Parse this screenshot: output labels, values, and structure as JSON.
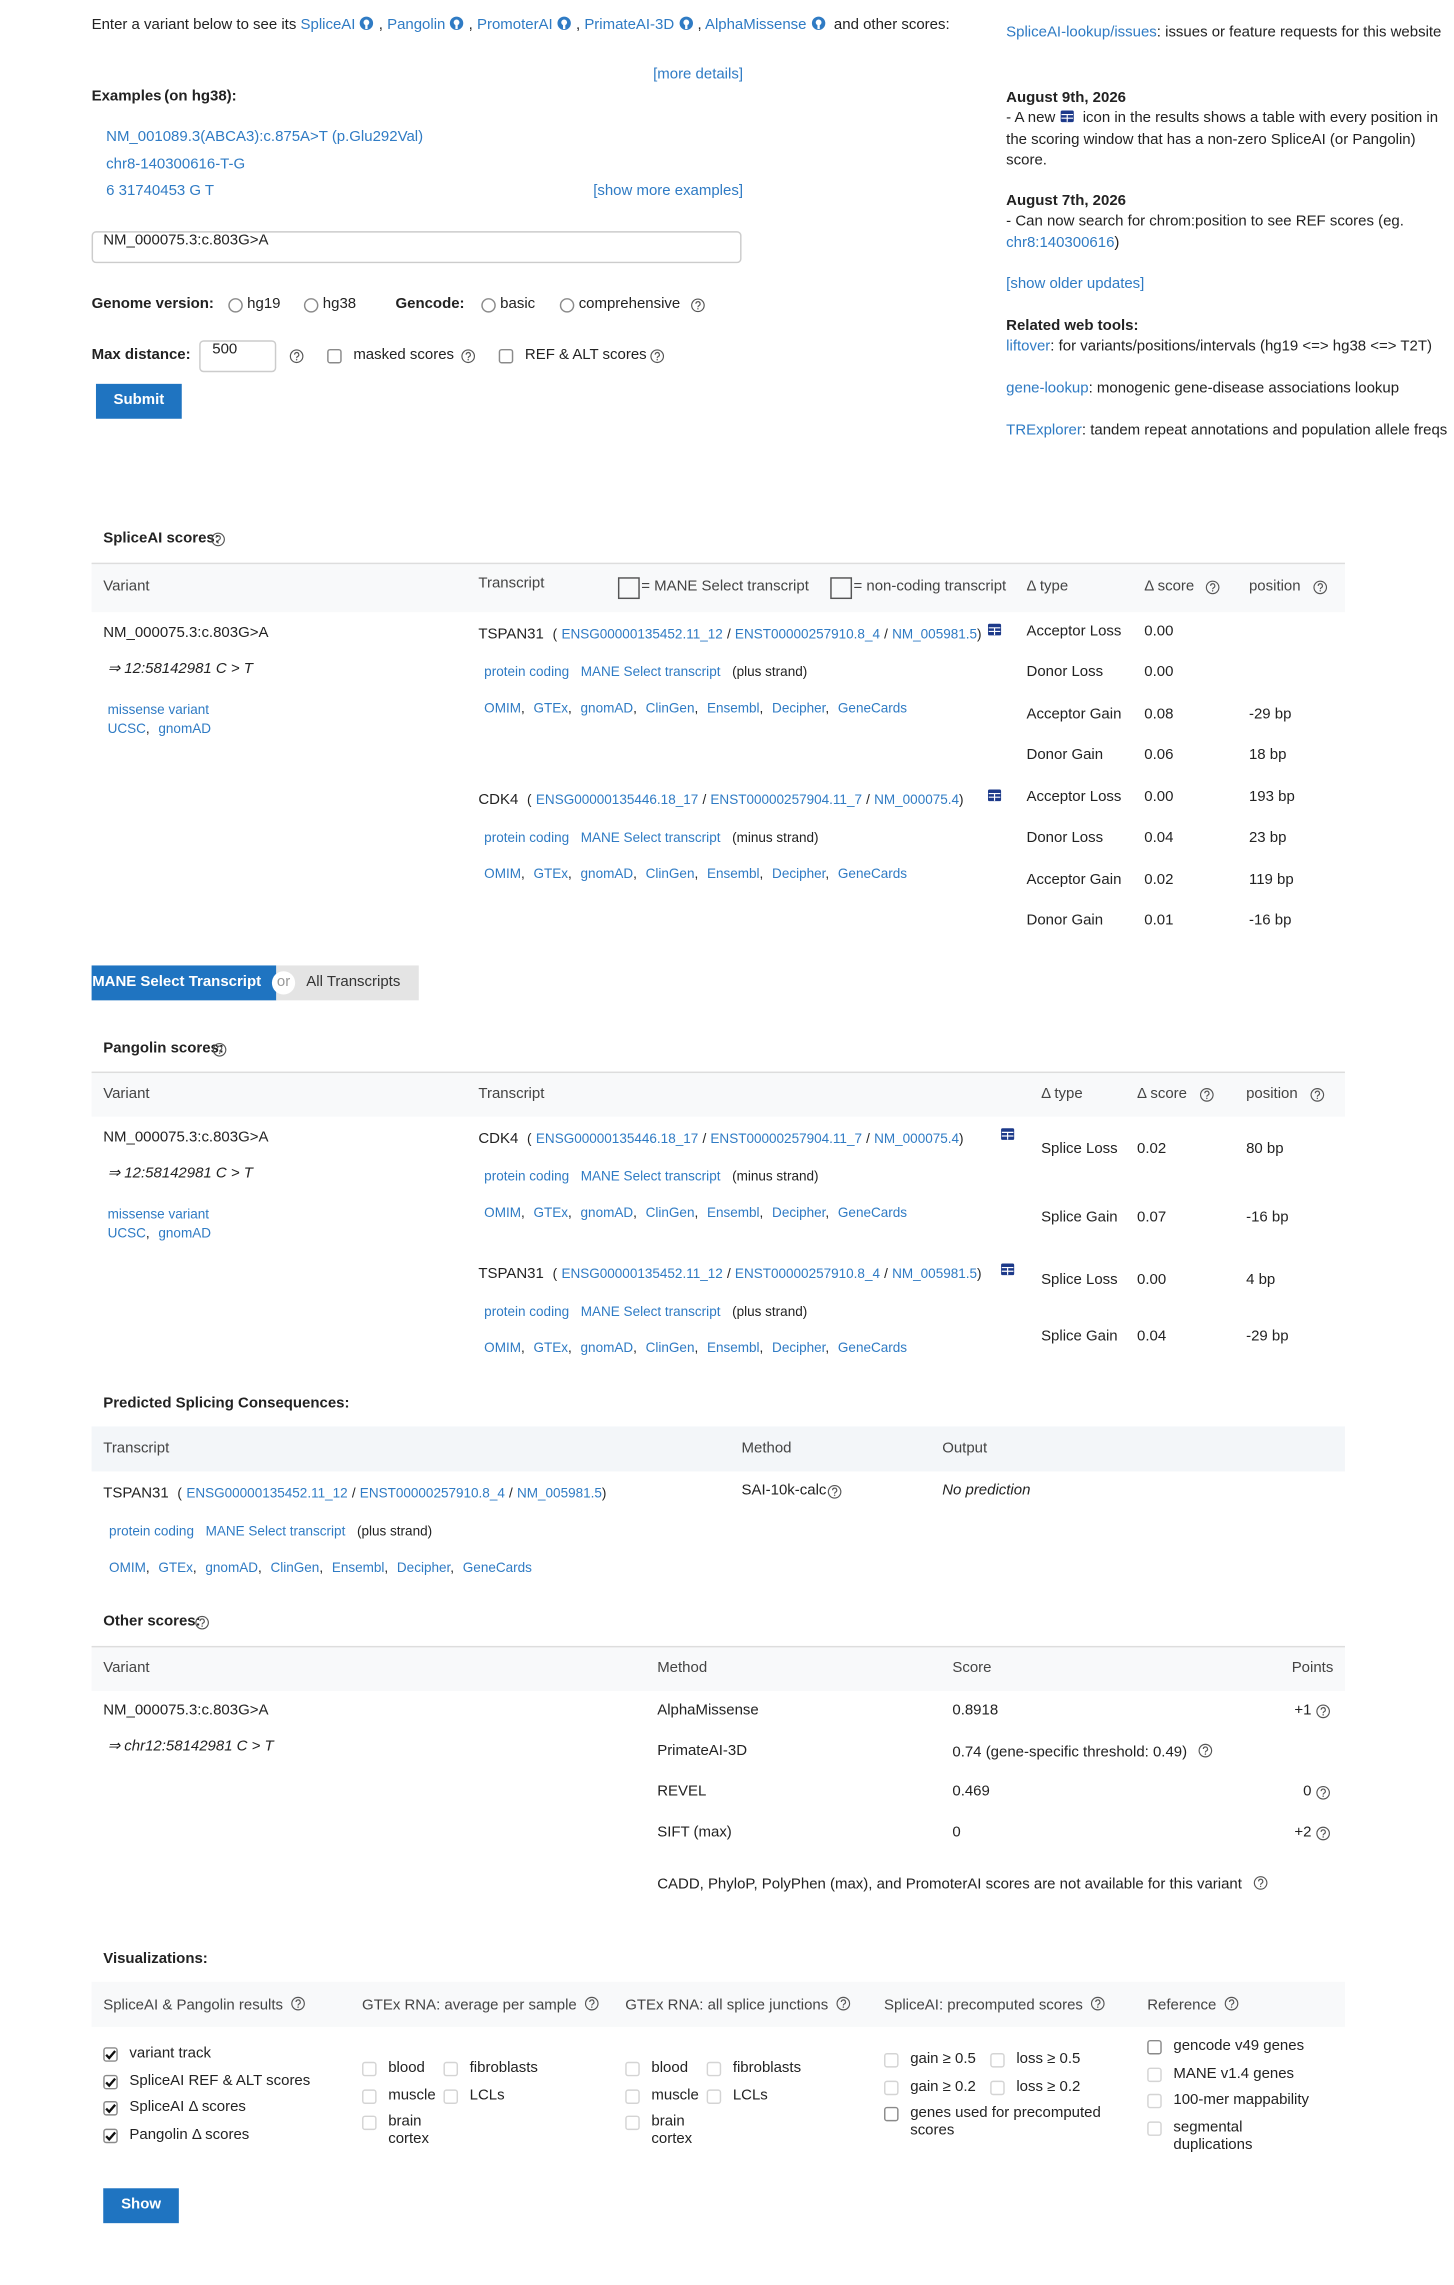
{
  "punct": {
    "comma": ",",
    "slash": "/",
    "open": "(",
    "close": ")"
  },
  "colors": {
    "link": "#2f7bc4",
    "button": "#1f74c1",
    "row": "#eaf2fb",
    "muted": "#b8b8b8"
  },
  "intro": {
    "lead": "Enter a variant below to see its",
    "tools": [
      "SpliceAI",
      "Pangolin",
      "PromoterAI",
      "PrimateAI-3D",
      "AlphaMissense"
    ],
    "tail": "and other scores:",
    "more_details": "[more details]"
  },
  "examples": {
    "label": "Examples",
    "note": "(on hg38):",
    "items": [
      "NM_001089.3(ABCA3):c.875A>T (p.Glu292Val)",
      "chr8-140300616-T-G",
      "6   31740453   G   T"
    ],
    "show_more": "[show more examples]"
  },
  "search": {
    "value": "NM_000075.3:c.803G>A"
  },
  "options": {
    "genome_label": "Genome version:",
    "genome": [
      "hg19",
      "hg38"
    ],
    "genome_selected": 0,
    "gencode_label": "Gencode:",
    "gencode": [
      "basic",
      "comprehensive"
    ],
    "gencode_selected": 0,
    "max_distance_label": "Max distance:",
    "max_distance": "500",
    "masked_scores": {
      "label": "masked scores",
      "checked": false
    },
    "ref_alt_scores": {
      "label": "REF & ALT scores",
      "checked": false
    },
    "submit": "Submit"
  },
  "sidebar": {
    "issues": {
      "link": "SpliceAI-lookup/issues",
      "text": ": issues or feature requests for this website"
    },
    "updates": [
      {
        "date": "August 9th, 2026",
        "before": "- A new",
        "after": "icon in the results shows a table with every position in the scoring window that has a non-zero SpliceAI (or Pangolin) score."
      },
      {
        "date": "August 7th, 2026",
        "before": "- Can now search for chrom:position to see REF scores (eg.",
        "link": "chr8:140300616",
        "after": ")"
      }
    ],
    "show_older": "[show older updates]",
    "related_title": "Related web tools:",
    "related": [
      {
        "name": "liftover",
        "text": ": for variants/positions/intervals (hg19 <=> hg38 <=> T2T)"
      },
      {
        "name": "gene-lookup",
        "text": ": monogenic gene-disease associations lookup"
      },
      {
        "name": "TRExplorer",
        "text": ": tandem repeat annotations and population allele freqs"
      }
    ]
  },
  "spliceai": {
    "title": "SpliceAI scores:",
    "headers": {
      "variant": "Variant",
      "transcript": "Transcript",
      "mane_legend": "= MANE Select transcript",
      "noncoding_legend": "= non-coding transcript",
      "type": "Δ type",
      "score": "Δ score",
      "position": "position"
    },
    "variant": {
      "id": "NM_000075.3:c.803G>A",
      "coords": "⇒ 12:58142981 C > T",
      "consequence": "missense variant",
      "links": [
        "UCSC",
        "gnomAD"
      ]
    },
    "transcripts": [
      {
        "gene": "TSPAN31",
        "ids": [
          "ENSG00000135452.11_12",
          "ENST00000257910.8_4",
          "NM_005981.5"
        ],
        "biotype": "protein coding",
        "mane": "MANE Select transcript",
        "strand": "(plus strand)",
        "links": [
          "OMIM",
          "GTEx",
          "gnomAD",
          "ClinGen",
          "Ensembl",
          "Decipher",
          "GeneCards"
        ],
        "scores": [
          {
            "type": "Acceptor Loss",
            "score": "0.00",
            "muted": true
          },
          {
            "type": "Donor Loss",
            "score": "0.00",
            "muted": true
          },
          {
            "type": "Acceptor Gain",
            "score": "0.08",
            "position": "-29 bp"
          },
          {
            "type": "Donor Gain",
            "score": "0.06",
            "position": "18 bp"
          }
        ]
      },
      {
        "gene": "CDK4",
        "ids": [
          "ENSG00000135446.18_17",
          "ENST00000257904.11_7",
          "NM_000075.4"
        ],
        "biotype": "protein coding",
        "mane": "MANE Select transcript",
        "strand": "(minus strand)",
        "links": [
          "OMIM",
          "GTEx",
          "gnomAD",
          "ClinGen",
          "Ensembl",
          "Decipher",
          "GeneCards"
        ],
        "scores": [
          {
            "type": "Acceptor Loss",
            "score": "0.00",
            "position": "193 bp",
            "muted": true
          },
          {
            "type": "Donor Loss",
            "score": "0.04",
            "position": "23 bp"
          },
          {
            "type": "Acceptor Gain",
            "score": "0.02",
            "position": "119 bp"
          },
          {
            "type": "Donor Gain",
            "score": "0.01",
            "position": "-16 bp",
            "muted": true
          }
        ]
      }
    ]
  },
  "toggle": {
    "selected": "MANE Select Transcript",
    "or": "or",
    "other": "All Transcripts"
  },
  "pangolin": {
    "title": "Pangolin scores:",
    "headers": {
      "variant": "Variant",
      "transcript": "Transcript",
      "type": "Δ type",
      "score": "Δ score",
      "position": "position"
    },
    "variant": {
      "id": "NM_000075.3:c.803G>A",
      "coords": "⇒ 12:58142981 C > T",
      "consequence": "missense variant",
      "links": [
        "UCSC",
        "gnomAD"
      ]
    },
    "transcripts": [
      {
        "gene": "CDK4",
        "ids": [
          "ENSG00000135446.18_17",
          "ENST00000257904.11_7",
          "NM_000075.4"
        ],
        "biotype": "protein coding",
        "mane": "MANE Select transcript",
        "strand": "(minus strand)",
        "links": [
          "OMIM",
          "GTEx",
          "gnomAD",
          "ClinGen",
          "Ensembl",
          "Decipher",
          "GeneCards"
        ],
        "scores": [
          {
            "type": "Splice Loss",
            "score": "0.02",
            "position": "80 bp"
          },
          {
            "type": "Splice Gain",
            "score": "0.07",
            "position": "-16 bp"
          }
        ]
      },
      {
        "gene": "TSPAN31",
        "ids": [
          "ENSG00000135452.11_12",
          "ENST00000257910.8_4",
          "NM_005981.5"
        ],
        "biotype": "protein coding",
        "mane": "MANE Select transcript",
        "strand": "(plus strand)",
        "links": [
          "OMIM",
          "GTEx",
          "gnomAD",
          "ClinGen",
          "Ensembl",
          "Decipher",
          "GeneCards"
        ],
        "scores": [
          {
            "type": "Splice Loss",
            "score": "0.00",
            "position": "4 bp",
            "muted": true
          },
          {
            "type": "Splice Gain",
            "score": "0.04",
            "position": "-29 bp"
          }
        ]
      }
    ]
  },
  "consequences": {
    "title": "Predicted Splicing Consequences:",
    "headers": {
      "transcript": "Transcript",
      "method": "Method",
      "output": "Output"
    },
    "rows": [
      {
        "transcript": {
          "gene": "TSPAN31",
          "ids": [
            "ENSG00000135452.11_12",
            "ENST00000257910.8_4",
            "NM_005981.5"
          ],
          "biotype": "protein coding",
          "mane": "MANE Select transcript",
          "strand": "(plus strand)",
          "links": [
            "OMIM",
            "GTEx",
            "gnomAD",
            "ClinGen",
            "Ensembl",
            "Decipher",
            "GeneCards"
          ]
        },
        "method": "SAI-10k-calc",
        "output": "No prediction"
      }
    ]
  },
  "other_scores": {
    "title": "Other scores:",
    "headers": {
      "variant": "Variant",
      "method": "Method",
      "score": "Score",
      "points": "Points"
    },
    "variant": {
      "id": "NM_000075.3:c.803G>A",
      "coords": "⇒ chr12:58142981 C > T"
    },
    "rows": [
      {
        "method": "AlphaMissense",
        "score": "0.8918",
        "points": "+1",
        "color": "#fdf0cf"
      },
      {
        "method": "PrimateAI-3D",
        "score": "0.74",
        "note": "(gene-specific threshold: 0.49)",
        "color": "#f9cbae"
      },
      {
        "method": "REVEL",
        "score": "0.469",
        "points": "0",
        "color": "#efefef"
      },
      {
        "method": "SIFT (max)",
        "score": "0",
        "points": "+2",
        "color": "#fde8b8"
      }
    ],
    "footnote": "CADD, PhyloP, PolyPhen (max), and PromoterAI scores are not available for this variant"
  },
  "visualizations": {
    "title": "Visualizations:",
    "groups": [
      {
        "title": "SpliceAI & Pangolin results",
        "columns": 1,
        "items": [
          {
            "label": "variant track",
            "checked": true
          },
          {
            "label": "SpliceAI REF & ALT scores",
            "checked": true
          },
          {
            "label": "SpliceAI Δ scores",
            "checked": true
          },
          {
            "label": "Pangolin Δ scores",
            "checked": true
          }
        ]
      },
      {
        "title": "GTEx RNA: average per sample",
        "columns": 2,
        "items": [
          {
            "label": "blood",
            "disabled": true
          },
          {
            "label": "fibroblasts",
            "disabled": true
          },
          {
            "label": "muscle",
            "disabled": true
          },
          {
            "label": "LCLs",
            "disabled": true
          },
          {
            "label": "brain cortex",
            "disabled": true
          }
        ]
      },
      {
        "title": "GTEx RNA: all splice junctions",
        "columns": 2,
        "items": [
          {
            "label": "blood",
            "disabled": true
          },
          {
            "label": "fibroblasts",
            "disabled": true
          },
          {
            "label": "muscle",
            "disabled": true
          },
          {
            "label": "LCLs",
            "disabled": true
          },
          {
            "label": "brain cortex",
            "disabled": true
          }
        ]
      },
      {
        "title": "SpliceAI: precomputed scores",
        "columns": 2,
        "items": [
          {
            "label": "gain ≥ 0.5",
            "disabled": true
          },
          {
            "label": "loss ≥ 0.5",
            "disabled": true
          },
          {
            "label": "gain ≥ 0.2",
            "disabled": true
          },
          {
            "label": "loss ≥ 0.2",
            "disabled": true
          },
          {
            "label": "genes used for precomputed scores"
          }
        ]
      },
      {
        "title": "Reference",
        "columns": 1,
        "items": [
          {
            "label": "gencode v49 genes"
          },
          {
            "label": "MANE v1.4 genes",
            "disabled": true
          },
          {
            "label": "100-mer mappability",
            "disabled": true
          },
          {
            "label": "segmental duplications",
            "disabled": true
          }
        ]
      }
    ],
    "show": "Show"
  }
}
